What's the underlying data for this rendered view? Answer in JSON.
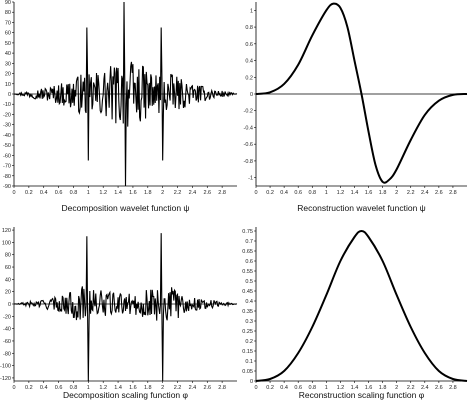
{
  "chart_data": [
    {
      "type": "line",
      "xlabel": "Decomposition wavelet function ψ",
      "xlim": [
        0,
        3.0
      ],
      "ylim": [
        -90,
        90
      ],
      "x_ticks": [
        0,
        0.2,
        0.4,
        0.6,
        0.8,
        1,
        1.2,
        1.4,
        1.6,
        1.8,
        2,
        2.2,
        2.4,
        2.6,
        2.8
      ],
      "x_tick_labels": [
        "0",
        "0.2",
        "0.4",
        "0.6",
        "0.8",
        "1",
        "1.2",
        "1.4",
        "1.6",
        "1.8",
        "2",
        "2.2",
        "2.4",
        "2.6",
        "2.8"
      ],
      "y_ticks": [
        90,
        80,
        70,
        60,
        50,
        40,
        30,
        20,
        10,
        0,
        -10,
        -20,
        -30,
        -40,
        -50,
        -60,
        -70,
        -80,
        -90
      ],
      "y_tick_labels": [
        "90",
        "80",
        "70",
        "60",
        "50",
        "40",
        "30",
        "20",
        "10",
        "0",
        "-10",
        "-20",
        "-30",
        "-40",
        "-50",
        "-60",
        "-70",
        "-80",
        "-90"
      ],
      "spikes": [
        {
          "x": 0.98,
          "y": 65
        },
        {
          "x": 1.0,
          "y": -65
        },
        {
          "x": 1.48,
          "y": 90
        },
        {
          "x": 1.5,
          "y": -90
        },
        {
          "x": 1.98,
          "y": 65
        },
        {
          "x": 2.0,
          "y": -65
        }
      ],
      "envelope": [
        {
          "x": 0.3,
          "y": 5
        },
        {
          "x": 0.6,
          "y": 10
        },
        {
          "x": 0.9,
          "y": 20
        },
        {
          "x": 1.2,
          "y": 25
        },
        {
          "x": 1.5,
          "y": 35
        },
        {
          "x": 1.8,
          "y": 25
        },
        {
          "x": 2.1,
          "y": 20
        },
        {
          "x": 2.4,
          "y": 10
        },
        {
          "x": 2.7,
          "y": 5
        }
      ]
    },
    {
      "type": "line",
      "xlabel": "Reconstruction wavelet function ψ",
      "xlim": [
        0,
        3.0
      ],
      "ylim": [
        -1.1,
        1.1
      ],
      "x_ticks": [
        0,
        0.2,
        0.4,
        0.6,
        0.8,
        1,
        1.2,
        1.4,
        1.6,
        1.8,
        2,
        2.2,
        2.4,
        2.6,
        2.8
      ],
      "x_tick_labels": [
        "0",
        "0.2",
        "0.4",
        "0.6",
        "0.8",
        "1",
        "1.2",
        "1.4",
        "1.6",
        "1.8",
        "2",
        "2.2",
        "2.4",
        "2.6",
        "2.8"
      ],
      "y_ticks": [
        1,
        0.8,
        0.6,
        0.4,
        0.2,
        0,
        -0.2,
        -0.4,
        -0.6,
        -0.8,
        -1
      ],
      "y_tick_labels": [
        "1",
        "0.8",
        "0.6",
        "0.4",
        "0.2",
        "0",
        "-0.2",
        "-0.4",
        "-0.6",
        "-0.8",
        "-1"
      ],
      "points": [
        [
          0,
          0
        ],
        [
          0.2,
          0.02
        ],
        [
          0.4,
          0.12
        ],
        [
          0.6,
          0.35
        ],
        [
          0.8,
          0.7
        ],
        [
          1.0,
          1.0
        ],
        [
          1.1,
          1.08
        ],
        [
          1.2,
          1.03
        ],
        [
          1.3,
          0.8
        ],
        [
          1.4,
          0.4
        ],
        [
          1.5,
          0.0
        ],
        [
          1.6,
          -0.45
        ],
        [
          1.7,
          -0.85
        ],
        [
          1.8,
          -1.05
        ],
        [
          1.9,
          -1.02
        ],
        [
          2.0,
          -0.9
        ],
        [
          2.2,
          -0.55
        ],
        [
          2.4,
          -0.25
        ],
        [
          2.6,
          -0.08
        ],
        [
          2.8,
          -0.01
        ],
        [
          3.0,
          0
        ]
      ]
    },
    {
      "type": "line",
      "xlabel": "Decomposition scaling function φ",
      "xlim": [
        0,
        3.0
      ],
      "ylim": [
        -125,
        125
      ],
      "x_ticks": [
        0,
        0.2,
        0.4,
        0.6,
        0.8,
        1,
        1.2,
        1.4,
        1.6,
        1.8,
        2,
        2.2,
        2.4,
        2.6,
        2.8
      ],
      "x_tick_labels": [
        "0",
        "0.2",
        "0.4",
        "0.6",
        "0.8",
        "1",
        "1.2",
        "1.4",
        "1.6",
        "1.8",
        "2",
        "2.2",
        "2.4",
        "2.6",
        "2.8"
      ],
      "y_ticks": [
        120,
        100,
        80,
        60,
        40,
        20,
        0,
        -20,
        -40,
        -60,
        -80,
        -100,
        -120
      ],
      "y_tick_labels": [
        "120",
        "100",
        "80",
        "60",
        "40",
        "20",
        "0",
        "-20",
        "-40",
        "-60",
        "-80",
        "-100",
        "-120"
      ],
      "spikes": [
        {
          "x": 0.98,
          "y": 110
        },
        {
          "x": 1.0,
          "y": -125
        },
        {
          "x": 1.98,
          "y": 115
        },
        {
          "x": 2.0,
          "y": -125
        }
      ],
      "envelope": [
        {
          "x": 0.3,
          "y": 6
        },
        {
          "x": 0.6,
          "y": 12
        },
        {
          "x": 0.9,
          "y": 30
        },
        {
          "x": 1.2,
          "y": 22
        },
        {
          "x": 1.5,
          "y": 15
        },
        {
          "x": 1.8,
          "y": 25
        },
        {
          "x": 2.1,
          "y": 30
        },
        {
          "x": 2.4,
          "y": 12
        },
        {
          "x": 2.7,
          "y": 6
        }
      ]
    },
    {
      "type": "line",
      "xlabel": "Reconstruction scaling function φ",
      "xlim": [
        0,
        3.0
      ],
      "ylim": [
        0,
        0.77
      ],
      "x_ticks": [
        0,
        0.2,
        0.4,
        0.6,
        0.8,
        1,
        1.2,
        1.4,
        1.6,
        1.8,
        2,
        2.2,
        2.4,
        2.6,
        2.8
      ],
      "x_tick_labels": [
        "0",
        "0.2",
        "0.4",
        "0.6",
        "0.8",
        "1",
        "1.2",
        "1.4",
        "1.6",
        "1.8",
        "2",
        "2.2",
        "2.4",
        "2.6",
        "2.8"
      ],
      "y_ticks": [
        0.75,
        0.7,
        0.65,
        0.6,
        0.55,
        0.5,
        0.45,
        0.4,
        0.35,
        0.3,
        0.25,
        0.2,
        0.15,
        0.1,
        0.05,
        0
      ],
      "y_tick_labels": [
        "0.75",
        "0.7",
        "0.65",
        "0.6",
        "0.55",
        "0.5",
        "0.45",
        "0.4",
        "0.35",
        "0.3",
        "0.25",
        "0.2",
        "0.15",
        "0.1",
        "0.05",
        "0"
      ],
      "points": [
        [
          0,
          0
        ],
        [
          0.2,
          0.01
        ],
        [
          0.4,
          0.05
        ],
        [
          0.6,
          0.14
        ],
        [
          0.8,
          0.27
        ],
        [
          1.0,
          0.43
        ],
        [
          1.2,
          0.6
        ],
        [
          1.4,
          0.72
        ],
        [
          1.5,
          0.75
        ],
        [
          1.6,
          0.72
        ],
        [
          1.8,
          0.6
        ],
        [
          2.0,
          0.43
        ],
        [
          2.2,
          0.27
        ],
        [
          2.4,
          0.14
        ],
        [
          2.6,
          0.05
        ],
        [
          2.8,
          0.01
        ],
        [
          3.0,
          0
        ]
      ]
    }
  ]
}
